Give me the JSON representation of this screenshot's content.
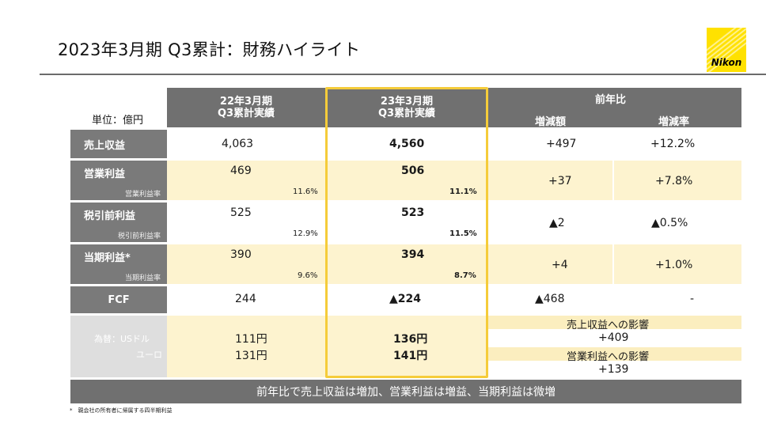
{
  "title": "2023年3月期 Q3累計：財務ハイライト",
  "logo": {
    "brand": "Nikon"
  },
  "table": {
    "unit_label": "単位：億円",
    "col_prev": [
      "22年3月期",
      "Q3累計実績"
    ],
    "col_curr": [
      "23年3月期",
      "Q3累計実績"
    ],
    "col_yoy": "前年比",
    "col_yoy_diff": "増減額",
    "col_yoy_rate": "増減率",
    "rows": {
      "revenue": {
        "label": "売上収益",
        "prev": "4,063",
        "curr": "4,560",
        "diff": "+497",
        "rate": "+12.2%"
      },
      "op": {
        "label": "営業利益",
        "sublabel": "営業利益率",
        "prev": "469",
        "prev_ratio": "11.6%",
        "curr": "506",
        "curr_ratio": "11.1%",
        "diff": "+37",
        "rate": "+7.8%"
      },
      "pretax": {
        "label": "税引前利益",
        "sublabel": "税引前利益率",
        "prev": "525",
        "prev_ratio": "12.9%",
        "curr": "523",
        "curr_ratio": "11.5%",
        "diff": "▲2",
        "rate": "▲0.5%"
      },
      "net": {
        "label": "当期利益*",
        "sublabel": "当期利益率",
        "prev": "390",
        "prev_ratio": "9.6%",
        "curr": "394",
        "curr_ratio": "8.7%",
        "diff": "+4",
        "rate": "+1.0%"
      },
      "fcf": {
        "label": "FCF",
        "prev": "244",
        "curr": "▲224",
        "diff": "▲468",
        "rate": "-"
      },
      "fx": {
        "label_usd": "為替：USドル",
        "label_eur": "ユーロ",
        "prev_usd": "111円",
        "prev_eur": "131円",
        "curr_usd": "136円",
        "curr_eur": "141円",
        "impact_rev_label": "売上収益への影響",
        "impact_rev_value": "+409",
        "impact_op_label": "営業利益への影響",
        "impact_op_value": "+139"
      }
    }
  },
  "summary": "前年比で売上収益は増加、営業利益は増益、当期利益は微増",
  "footnote": "*　親会社の所有者に帰属する四半期利益",
  "colors": {
    "header_gray": "#707070",
    "highlight": "#f5cc3a",
    "row_yellow": "#fdf3cf",
    "logo_yellow": "#ffe100"
  }
}
